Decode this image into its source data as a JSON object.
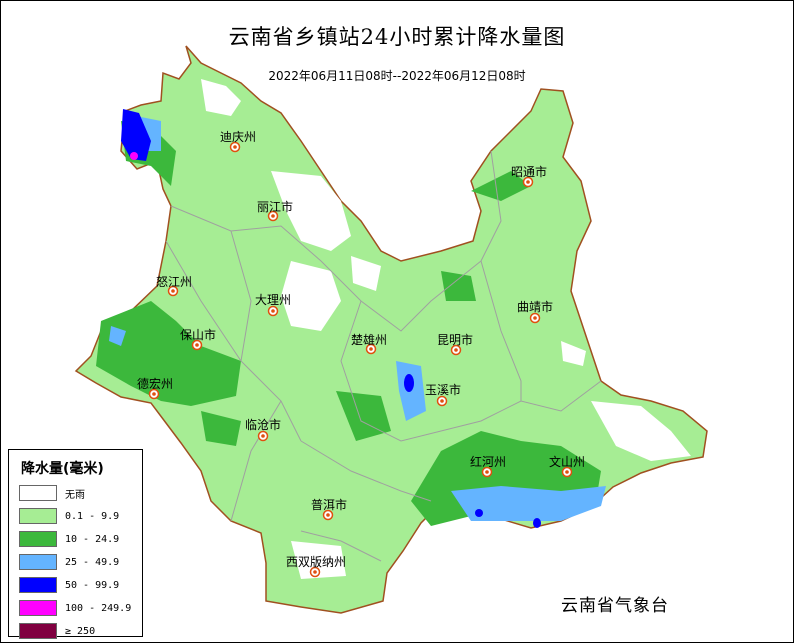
{
  "title": "云南省乡镇站24小时累计降水量图",
  "subtitle": "2022年06月11日08时--2022年06月12日08时",
  "footer": "云南省气象台",
  "colors": {
    "none": "#ffffff",
    "light": "#a6ed94",
    "moderate": "#3cb83c",
    "heavy": "#64b4ff",
    "rainstorm": "#0000ff",
    "heavy_rainstorm": "#ff00ff",
    "extreme": "#800040",
    "border": "#a05020",
    "inner_border": "#a0a0a0",
    "marker": "#e05010"
  },
  "legend": {
    "title": "降水量(毫米)",
    "items": [
      {
        "label": "无雨",
        "color": "#ffffff"
      },
      {
        "label": "0.1 - 9.9",
        "color": "#a6ed94"
      },
      {
        "label": "10 - 24.9",
        "color": "#3cb83c"
      },
      {
        "label": "25 - 49.9",
        "color": "#64b4ff"
      },
      {
        "label": "50 - 99.9",
        "color": "#0000ff"
      },
      {
        "label": "100 - 249.9",
        "color": "#ff00ff"
      },
      {
        "label": "≥ 250",
        "color": "#800040"
      }
    ]
  },
  "cities": [
    {
      "name": "迪庆州"
    },
    {
      "name": "丽江市"
    },
    {
      "name": "怒江州"
    },
    {
      "name": "大理州"
    },
    {
      "name": "保山市"
    },
    {
      "name": "楚雄州"
    },
    {
      "name": "昆明市"
    },
    {
      "name": "曲靖市"
    },
    {
      "name": "昭通市"
    },
    {
      "name": "德宏州"
    },
    {
      "name": "玉溪市"
    },
    {
      "name": "临沧市"
    },
    {
      "name": "红河州"
    },
    {
      "name": "文山州"
    },
    {
      "name": "普洱市"
    },
    {
      "name": "西双版纳州"
    }
  ]
}
